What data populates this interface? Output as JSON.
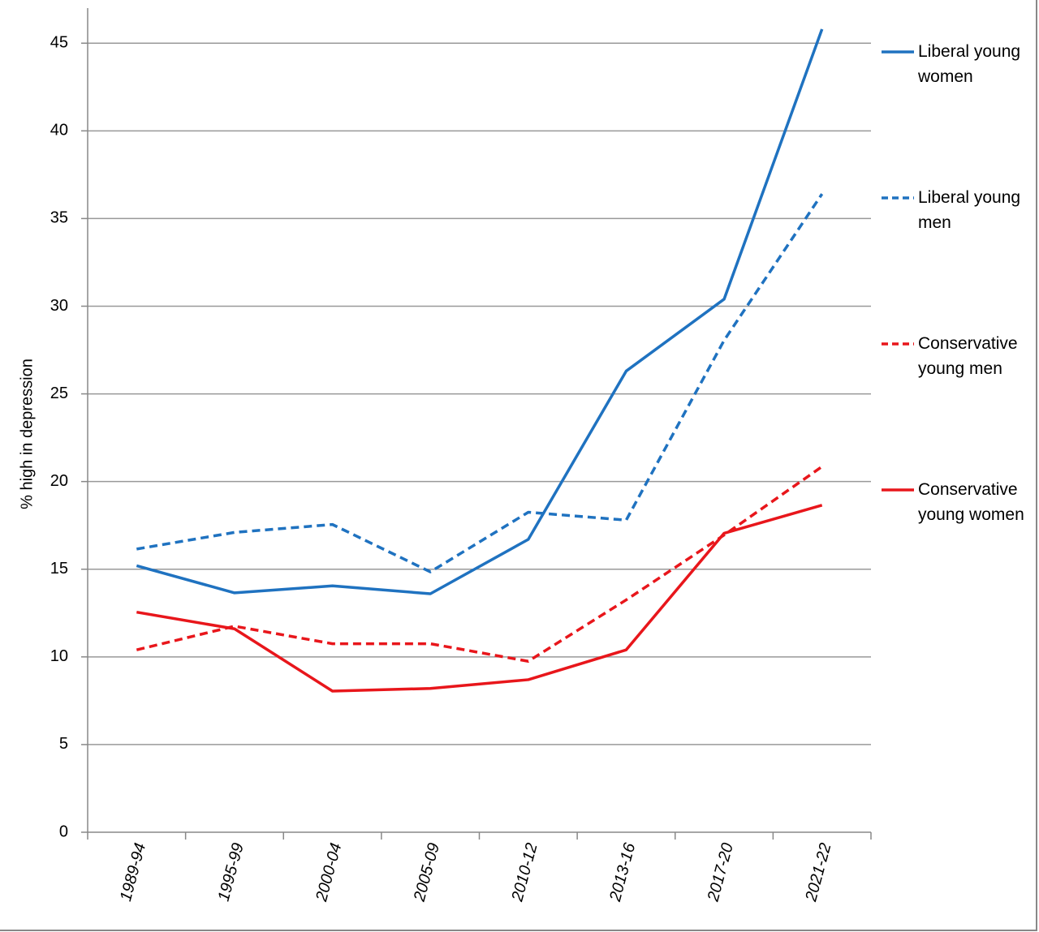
{
  "chart_data": {
    "type": "line",
    "y_label": "% high in depression",
    "categories": [
      "1989-94",
      "1995-99",
      "2000-04",
      "2005-09",
      "2010-12",
      "2013-16",
      "2017-20",
      "2021-22"
    ],
    "series": [
      {
        "name": "Liberal young women",
        "color": "#1f72c0",
        "style": "solid",
        "values": [
          15.2,
          13.65,
          14.05,
          13.6,
          16.7,
          26.3,
          30.4,
          45.8
        ]
      },
      {
        "name": "Liberal young men",
        "color": "#1f72c0",
        "style": "dashed",
        "values": [
          16.15,
          17.1,
          17.55,
          14.85,
          18.25,
          17.8,
          28.05,
          36.4
        ]
      },
      {
        "name": "Conservative young men",
        "color": "#e8161b",
        "style": "dashed",
        "values": [
          10.4,
          11.75,
          10.75,
          10.75,
          9.75,
          13.25,
          16.95,
          20.85
        ]
      },
      {
        "name": "Conservative young women",
        "color": "#e8161b",
        "style": "solid",
        "values": [
          12.55,
          11.6,
          8.05,
          8.2,
          8.7,
          10.4,
          17.05,
          18.65
        ]
      }
    ],
    "ylim": [
      0,
      47
    ],
    "yticks": [
      0,
      5,
      10,
      15,
      20,
      25,
      30,
      35,
      40,
      45
    ],
    "grid": true,
    "legend": "right"
  }
}
